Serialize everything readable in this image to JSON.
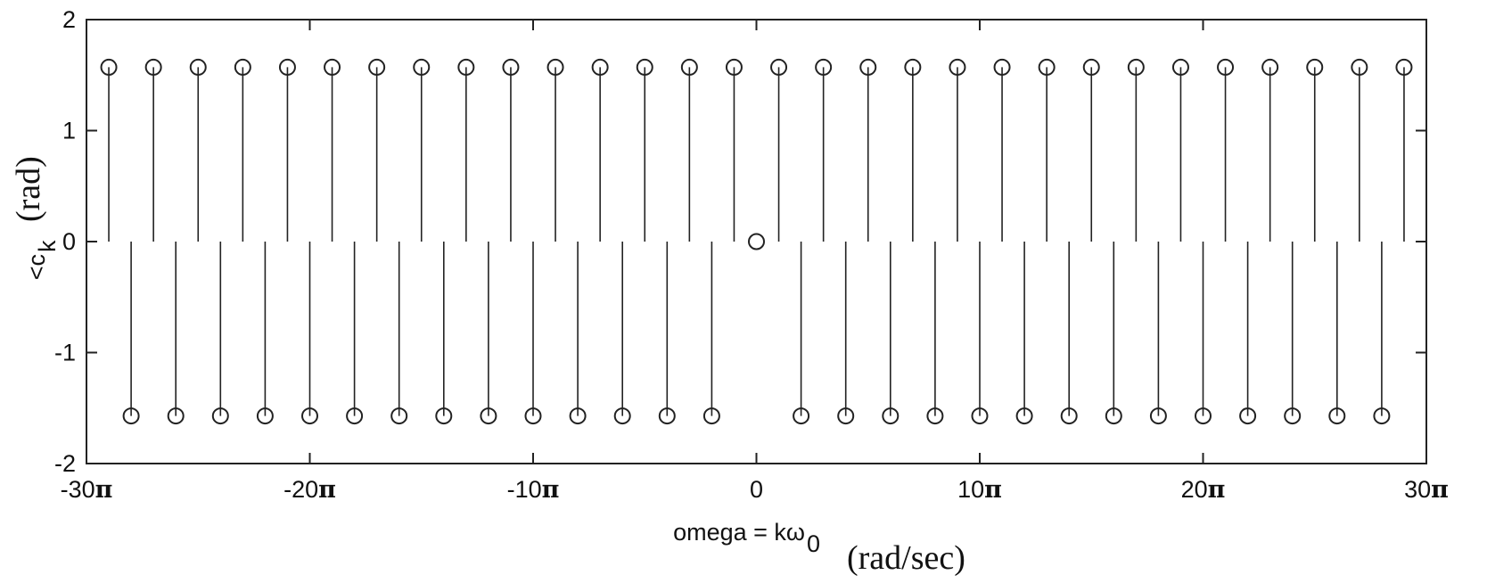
{
  "chart_data": {
    "type": "stem",
    "xlabel": "omega = kω",
    "xlabel_subscript": "0",
    "xlabel_units": "(rad/sec)",
    "ylabel": "<c",
    "ylabel_subscript": "k",
    "ylabel_units": "(rad)",
    "xlim_over_pi": [
      -30,
      30
    ],
    "ylim": [
      -2,
      2
    ],
    "x_tick_values_over_pi": [
      -30,
      -20,
      -10,
      0,
      10,
      20,
      30
    ],
    "x_tick_labels": [
      "-30π",
      "-20π",
      "-10π",
      "0",
      "10π",
      "20π",
      "30π"
    ],
    "y_tick_values": [
      -2,
      -1,
      0,
      1,
      2
    ],
    "y_tick_labels": [
      "-2",
      "-1",
      "0",
      "1",
      "2"
    ],
    "grid": false,
    "series": [
      {
        "x_over_pi": [
          -29,
          -27,
          -25,
          -23,
          -21,
          -19,
          -17,
          -15,
          -13,
          -11,
          -9,
          -7,
          -5,
          -3,
          -1,
          1,
          3,
          5,
          7,
          9,
          11,
          13,
          15,
          17,
          19,
          21,
          23,
          25,
          27,
          29
        ],
        "y": [
          1.5708,
          1.5708,
          1.5708,
          1.5708,
          1.5708,
          1.5708,
          1.5708,
          1.5708,
          1.5708,
          1.5708,
          1.5708,
          1.5708,
          1.5708,
          1.5708,
          1.5708,
          1.5708,
          1.5708,
          1.5708,
          1.5708,
          1.5708,
          1.5708,
          1.5708,
          1.5708,
          1.5708,
          1.5708,
          1.5708,
          1.5708,
          1.5708,
          1.5708,
          1.5708
        ]
      },
      {
        "x_over_pi": [
          -28,
          -26,
          -24,
          -22,
          -20,
          -18,
          -16,
          -14,
          -12,
          -10,
          -8,
          -6,
          -4,
          -2,
          2,
          4,
          6,
          8,
          10,
          12,
          14,
          16,
          18,
          20,
          22,
          24,
          26,
          28
        ],
        "y": [
          -1.5708,
          -1.5708,
          -1.5708,
          -1.5708,
          -1.5708,
          -1.5708,
          -1.5708,
          -1.5708,
          -1.5708,
          -1.5708,
          -1.5708,
          -1.5708,
          -1.5708,
          -1.5708,
          -1.5708,
          -1.5708,
          -1.5708,
          -1.5708,
          -1.5708,
          -1.5708,
          -1.5708,
          -1.5708,
          -1.5708,
          -1.5708,
          -1.5708,
          -1.5708,
          -1.5708,
          -1.5708
        ]
      },
      {
        "x_over_pi": [
          0
        ],
        "y": [
          0
        ]
      }
    ]
  }
}
